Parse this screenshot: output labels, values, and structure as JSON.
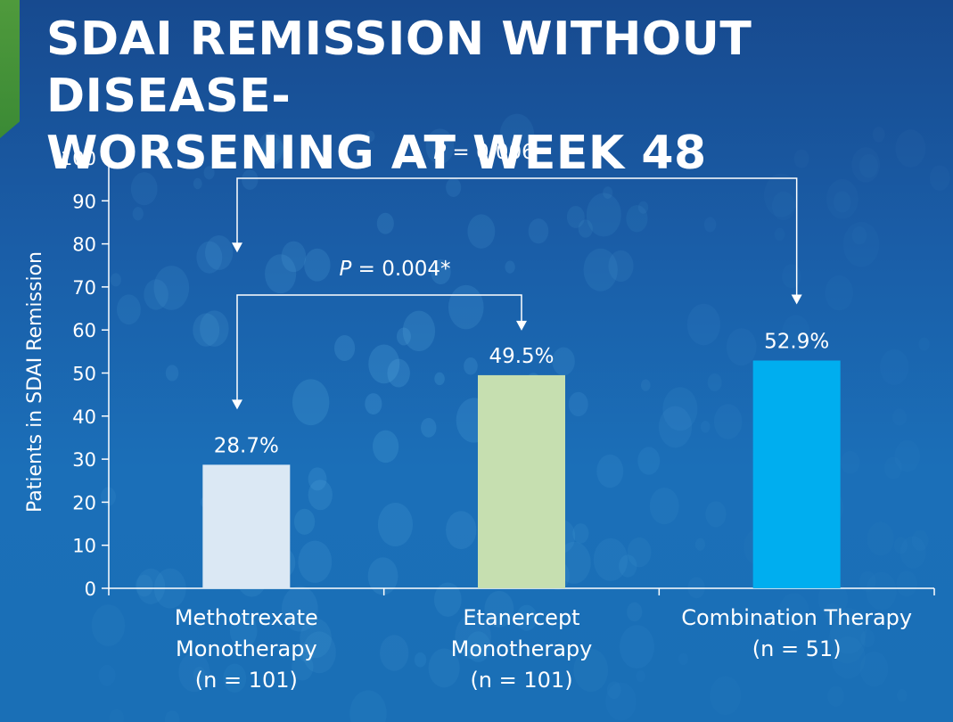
{
  "title": {
    "line1": "SDAI REMISSION WITHOUT DISEASE-",
    "line2": "WORSENING AT WEEK 48"
  },
  "colors": {
    "background": "#1a5ea8",
    "accent_green": "#4f9a3c",
    "axis": "#ffffff",
    "methotrexate": "#dbe8f4",
    "etanercept": "#c6dfb0",
    "combination": "#00aeef"
  },
  "chart_data": {
    "type": "bar",
    "ylabel": "Patients in SDAI Remission",
    "ylim": [
      0,
      100
    ],
    "yticks": [
      "0",
      "10",
      "20",
      "30",
      "40",
      "50",
      "60",
      "70",
      "80",
      "90",
      "100"
    ],
    "categories": [
      [
        "Methotrexate",
        "Monotherapy",
        "(n = 101)"
      ],
      [
        "Etanercept",
        "Monotherapy",
        "(n = 101)"
      ],
      [
        "Combination Therapy",
        "(n = 51)"
      ]
    ],
    "values": [
      28.7,
      49.5,
      52.9
    ],
    "data_labels": [
      "28.7%",
      "49.5%",
      "52.9%"
    ],
    "comparisons": [
      {
        "from": 0,
        "to": 1,
        "p_label": "P",
        "p_value": " = 0.004*"
      },
      {
        "from": 0,
        "to": 2,
        "p_label": "P",
        "p_value": " = 0.006"
      }
    ],
    "grid": false,
    "legend": "none"
  }
}
